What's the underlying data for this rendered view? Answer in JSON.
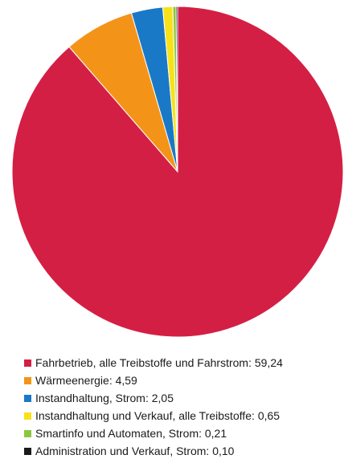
{
  "chart_data": {
    "type": "pie",
    "title": "",
    "slices": [
      {
        "label": "Fahrbetrieb, alle Treibstoffe und Fahrstrom: 59,24",
        "value": 59.24,
        "color": "#d41f44"
      },
      {
        "label": "Wärmeenergie: 4,59",
        "value": 4.59,
        "color": "#f39419"
      },
      {
        "label": "Instandhaltung, Strom: 2,05",
        "value": 2.05,
        "color": "#1a79c6"
      },
      {
        "label": "Instandhaltung und Verkauf, alle Treibstoffe: 0,65",
        "value": 0.65,
        "color": "#f7e21a"
      },
      {
        "label": "Smartinfo und Automaten, Strom: 0,21",
        "value": 0.21,
        "color": "#8cc63f"
      },
      {
        "label": "Administration und Verkauf, Strom: 0,10",
        "value": 0.1,
        "color": "#1a1a1a"
      }
    ],
    "legend": "bottom-left"
  }
}
